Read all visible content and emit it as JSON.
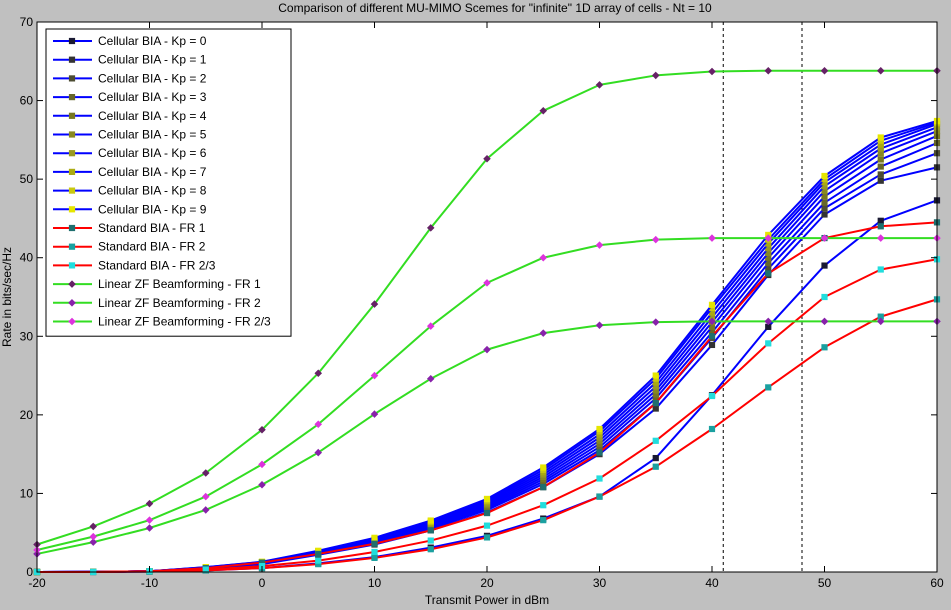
{
  "chart_data": {
    "type": "line",
    "title": "Comparison of different MU-MIMO Scemes for \"infinite\" 1D array of cells - Nt = 10",
    "xlabel": "Transmit Power in dBm",
    "ylabel": "Rate in bits/sec/Hz",
    "xlim": [
      -20,
      60
    ],
    "ylim": [
      0,
      70
    ],
    "xticks": [
      "-20",
      "-10",
      "0",
      "10",
      "20",
      "30",
      "40",
      "50",
      "60"
    ],
    "yticks": [
      "0",
      "10",
      "20",
      "30",
      "40",
      "50",
      "60",
      "70"
    ],
    "grid": false,
    "legend_position": "top-left",
    "vlines": [
      41,
      48
    ],
    "x": [
      -20,
      -15,
      -10,
      -5,
      0,
      5,
      10,
      15,
      20,
      25,
      30,
      35,
      40,
      45,
      50,
      55,
      60
    ],
    "series": [
      {
        "name": "Cellular BIA - Kp = 0",
        "color": "#0000ff",
        "marker_color": "#1a1a33",
        "marker": "square",
        "values": [
          0,
          0,
          0.05,
          0.2,
          0.5,
          1.1,
          1.9,
          3.1,
          4.6,
          6.8,
          9.6,
          14.5,
          22.5,
          31.2,
          39,
          44.7,
          47.3
        ]
      },
      {
        "name": "Cellular BIA - Kp = 1",
        "color": "#0000ff",
        "marker_color": "#333333",
        "marker": "square",
        "values": [
          0,
          0.02,
          0.1,
          0.4,
          1.0,
          2.2,
          3.5,
          5.3,
          7.6,
          10.8,
          15.0,
          20.8,
          28.9,
          37.8,
          45.5,
          49.8,
          51.5
        ]
      },
      {
        "name": "Cellular BIA - Kp = 2",
        "color": "#0000ff",
        "marker_color": "#4d4d33",
        "marker": "square",
        "values": [
          0,
          0.02,
          0.1,
          0.45,
          1.05,
          2.3,
          3.65,
          5.5,
          7.9,
          11.2,
          15.5,
          21.5,
          29.8,
          38.6,
          46.3,
          50.6,
          53.3
        ]
      },
      {
        "name": "Cellular BIA - Kp = 3",
        "color": "#0000ff",
        "marker_color": "#66662b",
        "marker": "square",
        "values": [
          0,
          0.02,
          0.1,
          0.47,
          1.1,
          2.4,
          3.75,
          5.65,
          8.1,
          11.5,
          15.9,
          22.1,
          30.5,
          39.3,
          47.0,
          51.6,
          54.6
        ]
      },
      {
        "name": "Cellular BIA - Kp = 4",
        "color": "#0000ff",
        "marker_color": "#777722",
        "marker": "square",
        "values": [
          0,
          0.02,
          0.1,
          0.5,
          1.15,
          2.45,
          3.85,
          5.8,
          8.3,
          11.8,
          16.3,
          22.6,
          31.2,
          40.0,
          47.8,
          52.5,
          55.5
        ]
      },
      {
        "name": "Cellular BIA - Kp = 5",
        "color": "#0000ff",
        "marker_color": "#888822",
        "marker": "square",
        "values": [
          0,
          0.02,
          0.1,
          0.52,
          1.2,
          2.5,
          3.95,
          5.95,
          8.5,
          12.1,
          16.7,
          23.1,
          31.8,
          40.6,
          48.5,
          53.3,
          56.1
        ]
      },
      {
        "name": "Cellular BIA - Kp = 6",
        "color": "#0000ff",
        "marker_color": "#999922",
        "marker": "square",
        "values": [
          0,
          0.02,
          0.1,
          0.55,
          1.22,
          2.55,
          4.05,
          6.1,
          8.7,
          12.4,
          17.1,
          23.6,
          32.4,
          41.2,
          49.1,
          53.9,
          56.6
        ]
      },
      {
        "name": "Cellular BIA - Kp = 7",
        "color": "#0000ff",
        "marker_color": "#aaaa11",
        "marker": "square",
        "values": [
          0,
          0.02,
          0.1,
          0.57,
          1.25,
          2.6,
          4.15,
          6.25,
          8.9,
          12.7,
          17.5,
          24.1,
          33.0,
          41.8,
          49.6,
          54.4,
          57.0
        ]
      },
      {
        "name": "Cellular BIA - Kp = 8",
        "color": "#0000ff",
        "marker_color": "#c8c811",
        "marker": "square",
        "values": [
          0,
          0.02,
          0.1,
          0.6,
          1.28,
          2.65,
          4.25,
          6.4,
          9.1,
          13.0,
          17.9,
          24.6,
          33.6,
          42.3,
          50.0,
          54.9,
          57.2
        ]
      },
      {
        "name": "Cellular BIA - Kp = 9",
        "color": "#0000ff",
        "marker_color": "#e6e600",
        "marker": "square",
        "values": [
          0,
          0.02,
          0.1,
          0.62,
          1.3,
          2.7,
          4.35,
          6.55,
          9.3,
          13.3,
          18.2,
          25.0,
          34.0,
          42.9,
          50.4,
          55.3,
          57.4
        ]
      },
      {
        "name": "Standard BIA - FR 1",
        "color": "#ff0000",
        "marker_color": "#1f6f6f",
        "marker": "square",
        "values": [
          0,
          0.02,
          0.1,
          0.5,
          1.2,
          2.3,
          3.6,
          5.3,
          7.5,
          10.8,
          15.2,
          21.5,
          30.0,
          38.0,
          42.5,
          44.0,
          44.5
        ]
      },
      {
        "name": "Standard BIA - FR 2",
        "color": "#ff0000",
        "marker_color": "#1aa0a0",
        "marker": "square",
        "values": [
          0,
          0,
          0.05,
          0.2,
          0.5,
          1.0,
          1.8,
          2.9,
          4.4,
          6.6,
          9.6,
          13.4,
          18.2,
          23.5,
          28.6,
          32.5,
          34.7
        ]
      },
      {
        "name": "Standard BIA - FR 2/3",
        "color": "#ff0000",
        "marker_color": "#22dddd",
        "marker": "square",
        "values": [
          0,
          0,
          0.1,
          0.3,
          0.75,
          1.45,
          2.55,
          4.0,
          5.9,
          8.5,
          11.9,
          16.7,
          22.4,
          29.1,
          35.0,
          38.5,
          39.8
        ]
      },
      {
        "name": "Linear ZF Beamforming - FR 1",
        "color": "#33dd22",
        "marker_color": "#662266",
        "marker": "diamond",
        "values": [
          3.5,
          5.8,
          8.7,
          12.6,
          18.1,
          25.3,
          34.1,
          43.8,
          52.6,
          58.7,
          62.0,
          63.2,
          63.7,
          63.8,
          63.8,
          63.8,
          63.8
        ]
      },
      {
        "name": "Linear ZF Beamforming - FR 2",
        "color": "#33dd22",
        "marker_color": "#8822aa",
        "marker": "diamond",
        "values": [
          2.3,
          3.8,
          5.6,
          7.9,
          11.1,
          15.2,
          20.1,
          24.6,
          28.3,
          30.4,
          31.4,
          31.8,
          31.9,
          31.9,
          31.9,
          31.9,
          31.9
        ]
      },
      {
        "name": "Linear ZF Beamforming - FR 2/3",
        "color": "#33dd22",
        "marker_color": "#dd33dd",
        "marker": "diamond",
        "values": [
          2.8,
          4.5,
          6.6,
          9.6,
          13.7,
          18.8,
          25.0,
          31.3,
          36.8,
          40.0,
          41.6,
          42.3,
          42.5,
          42.5,
          42.5,
          42.5,
          42.5
        ]
      }
    ]
  }
}
